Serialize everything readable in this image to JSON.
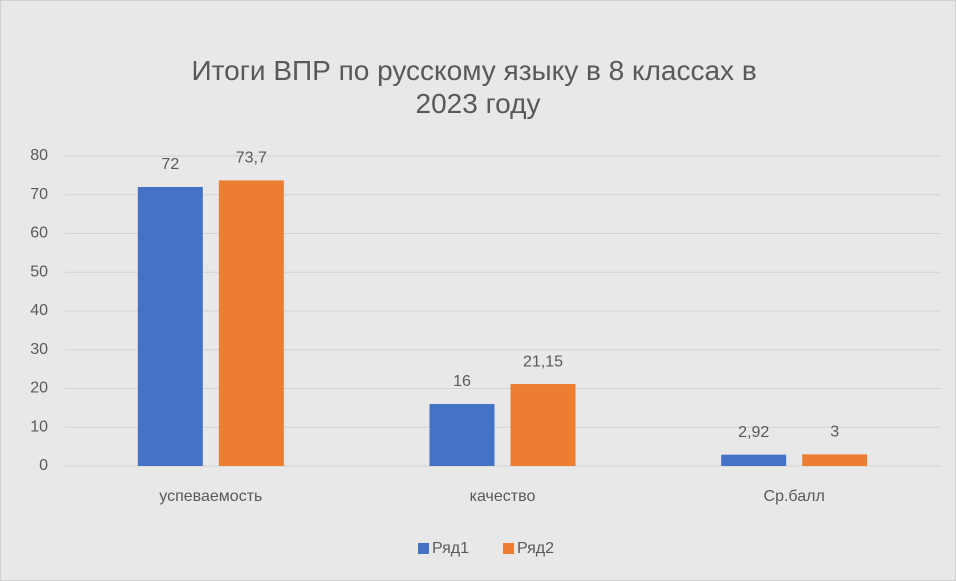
{
  "chart_data": {
    "type": "bar",
    "title": "Итоги ВПР по русскому языку в 8 классах в 2023 году",
    "categories": [
      "успеваемость",
      "качество",
      "Ср.балл"
    ],
    "series": [
      {
        "name": "Ряд1",
        "color": "#4472c4",
        "values": [
          72,
          16,
          2.92
        ],
        "value_labels": [
          "72",
          "16",
          "2,92"
        ]
      },
      {
        "name": "Ряд2",
        "color": "#ed7d31",
        "values": [
          73.7,
          21.15,
          3
        ],
        "value_labels": [
          "73,7",
          "21,15",
          "3"
        ]
      }
    ],
    "ylim": [
      0,
      80
    ],
    "yticks": [
      0,
      10,
      20,
      30,
      40,
      50,
      60,
      70,
      80
    ],
    "grid": true,
    "legend": "bottom"
  }
}
